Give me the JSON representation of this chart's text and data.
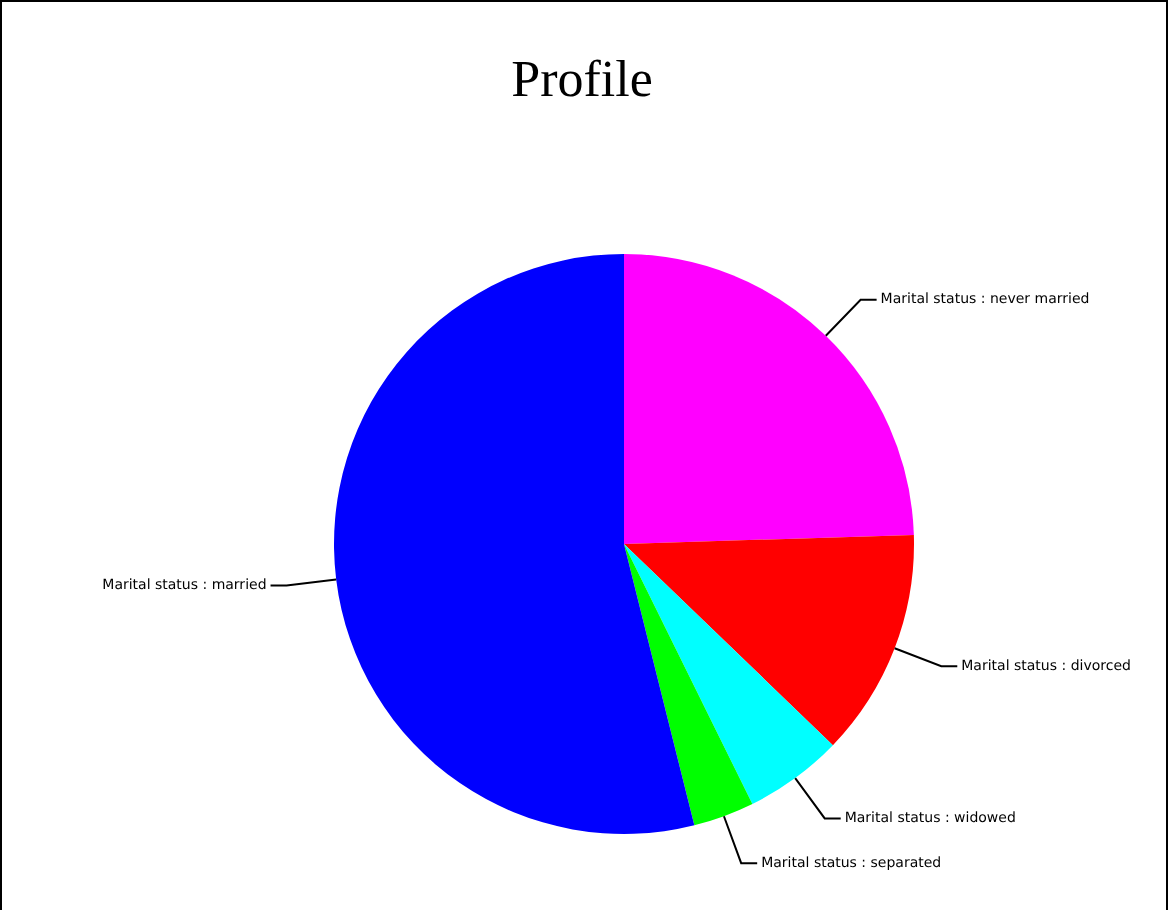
{
  "chart_data": {
    "type": "pie",
    "title": "Profile",
    "categories": [
      "Marital status : never married",
      "Marital status : divorced",
      "Marital status : widowed",
      "Marital status : separated",
      "Marital status : married"
    ],
    "values": [
      24.5,
      12.7,
      5.5,
      3.4,
      53.9
    ],
    "colors": [
      "#ff00ff",
      "#ff0000",
      "#00ffff",
      "#00ff00",
      "#0000ff"
    ],
    "legend": false
  }
}
